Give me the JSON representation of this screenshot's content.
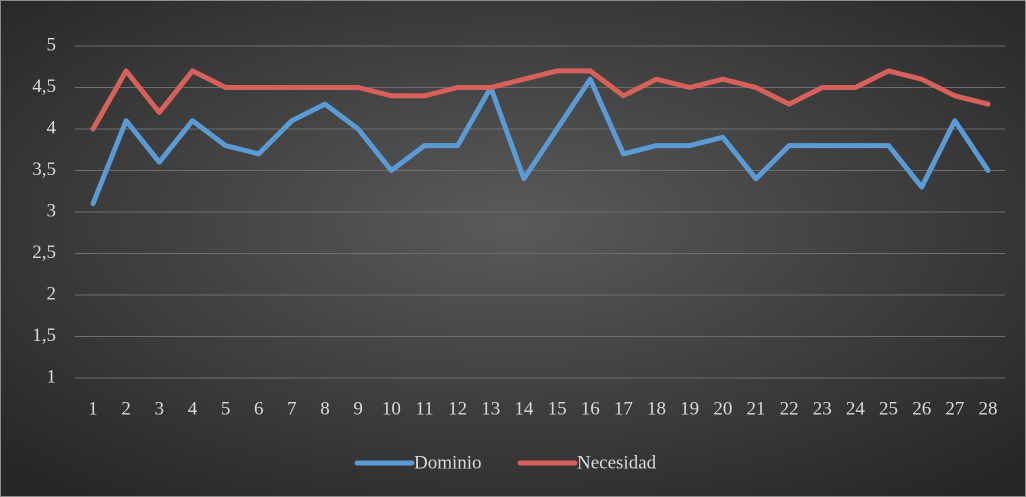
{
  "chart_data": {
    "type": "line",
    "categories": [
      "1",
      "2",
      "3",
      "4",
      "5",
      "6",
      "7",
      "8",
      "9",
      "10",
      "11",
      "12",
      "13",
      "14",
      "15",
      "16",
      "17",
      "18",
      "19",
      "20",
      "21",
      "22",
      "23",
      "24",
      "25",
      "26",
      "27",
      "28"
    ],
    "series": [
      {
        "name": "Dominio",
        "color": "#5b9bd5",
        "values": [
          3.1,
          4.1,
          3.6,
          4.1,
          3.8,
          3.7,
          4.1,
          4.3,
          4.0,
          3.5,
          3.8,
          3.8,
          4.5,
          3.4,
          4.0,
          4.6,
          3.7,
          3.8,
          3.8,
          3.9,
          3.4,
          3.8,
          3.8,
          3.8,
          3.8,
          3.3,
          4.1,
          3.5
        ]
      },
      {
        "name": "Necesidad",
        "color": "#d7605a",
        "values": [
          4.0,
          4.7,
          4.2,
          4.7,
          4.5,
          4.5,
          4.5,
          4.5,
          4.5,
          4.4,
          4.4,
          4.5,
          4.5,
          4.6,
          4.7,
          4.7,
          4.4,
          4.6,
          4.5,
          4.6,
          4.5,
          4.3,
          4.5,
          4.5,
          4.7,
          4.6,
          4.4,
          4.3
        ]
      }
    ],
    "ylim": [
      1,
      5
    ],
    "yticks": [
      1,
      {
        "value": 1.5,
        "label": "1,5"
      },
      2,
      {
        "value": 2.5,
        "label": "2,5"
      },
      3,
      {
        "value": 3.5,
        "label": "3,5"
      },
      4,
      {
        "value": 4.5,
        "label": "4,5"
      },
      5
    ],
    "grid": true,
    "legend": "bottom"
  }
}
